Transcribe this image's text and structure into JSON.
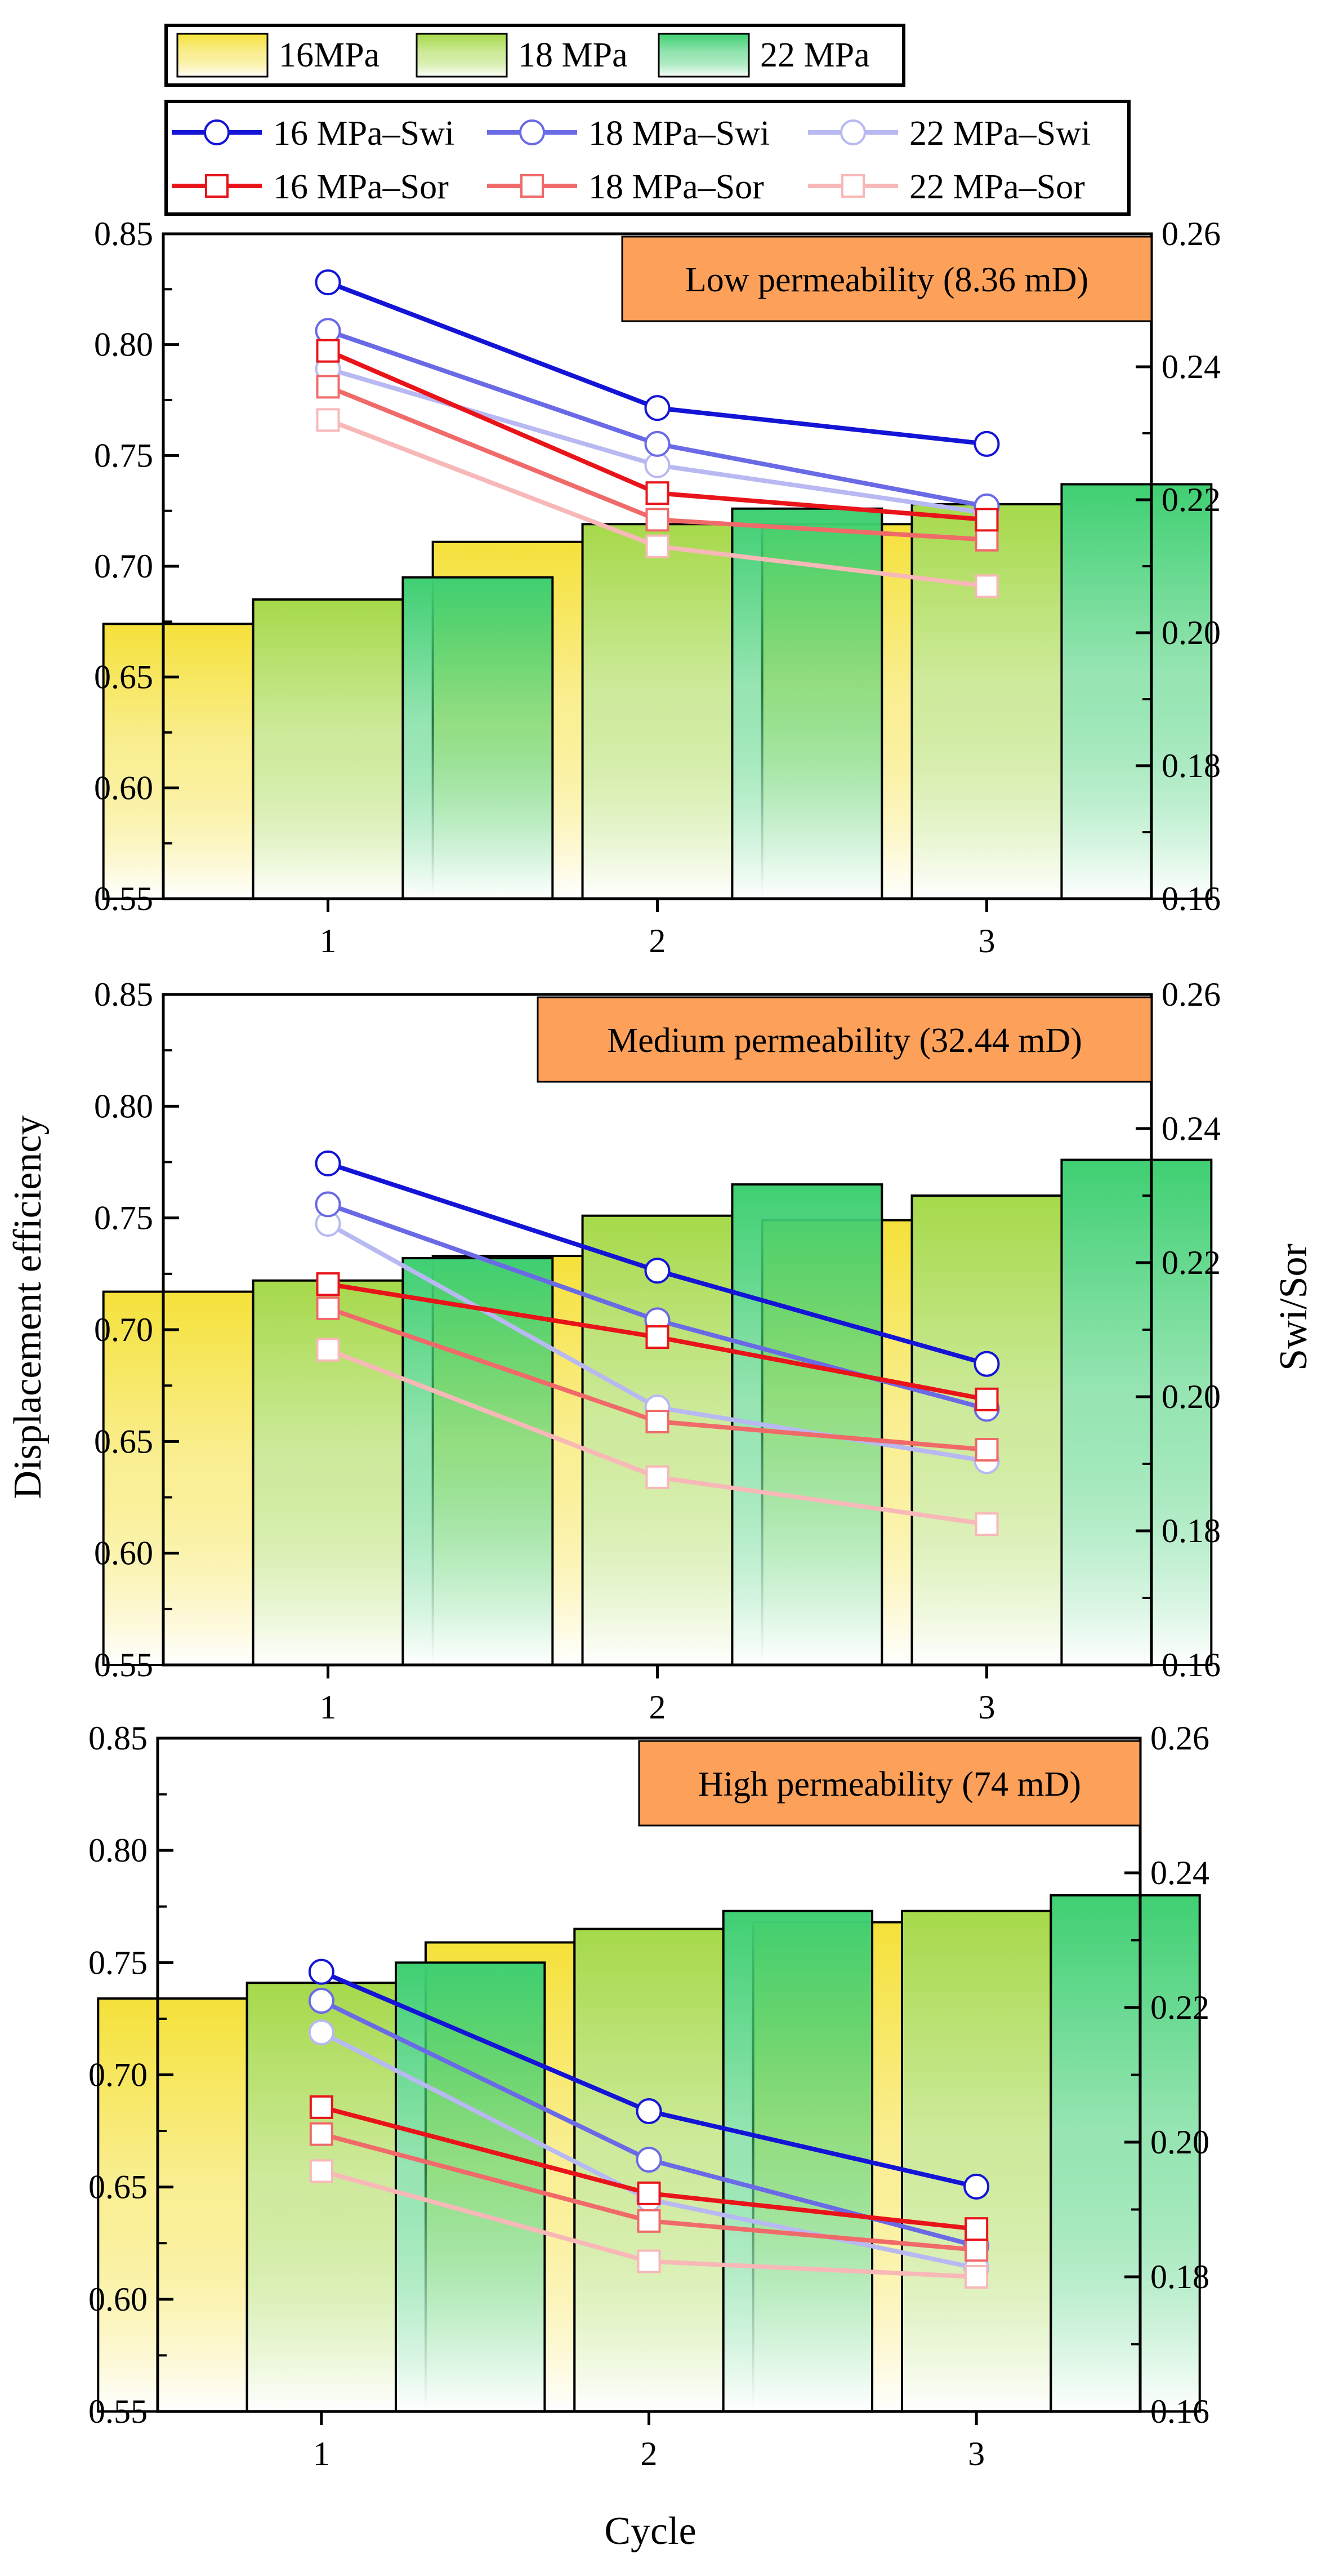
{
  "colors": {
    "bar_16": "#f5e13a",
    "bar_18": "#a6d94a",
    "bar_22": "#3fcf72",
    "swi_16": "#1414d6",
    "swi_18": "#6a6ae6",
    "swi_22": "#b8b8f2",
    "sor_16": "#e8141a",
    "sor_18": "#f06a6a",
    "sor_22": "#f8b8b8",
    "box_fill": "#fda15a"
  },
  "legend": {
    "bars": [
      "16MPa",
      "18 MPa",
      "22 MPa"
    ],
    "lines": [
      "16 MPa–Swi",
      "18 MPa–Swi",
      "22 MPa–Swi",
      "16 MPa–Sor",
      "18 MPa–Sor",
      "22 MPa–Sor"
    ]
  },
  "chart_data": [
    {
      "type": "bar",
      "title": "Low permeability (8.36 mD)",
      "categories": [
        "1",
        "2",
        "3"
      ],
      "ylabel": "Displacement efficiency",
      "y2label": "Swi/Sor",
      "ylim": [
        0.55,
        0.85
      ],
      "y2lim": [
        0.16,
        0.26
      ],
      "yticks": [
        "0.55",
        "0.60",
        "0.65",
        "0.70",
        "0.75",
        "0.80",
        "0.85"
      ],
      "y2ticks": [
        "0.16",
        "0.18",
        "0.20",
        "0.22",
        "0.24",
        "0.26"
      ],
      "series": [
        {
          "name": "16MPa",
          "values": [
            0.674,
            0.711,
            0.719
          ]
        },
        {
          "name": "18 MPa",
          "values": [
            0.685,
            0.719,
            0.728
          ]
        },
        {
          "name": "22 MPa",
          "values": [
            0.695,
            0.726,
            0.737
          ]
        }
      ],
      "lines": [
        {
          "name": "16 MPa–Swi",
          "values": [
            0.2527,
            0.2338,
            0.2284
          ]
        },
        {
          "name": "18 MPa–Swi",
          "values": [
            0.2454,
            0.2284,
            0.219
          ]
        },
        {
          "name": "22 MPa–Swi",
          "values": [
            0.2397,
            0.2252,
            0.218
          ]
        },
        {
          "name": "16 MPa–Sor",
          "values": [
            0.2424,
            0.221,
            0.217
          ]
        },
        {
          "name": "18 MPa–Sor",
          "values": [
            0.237,
            0.217,
            0.214
          ]
        },
        {
          "name": "22 MPa–Sor",
          "values": [
            0.232,
            0.213,
            0.207
          ]
        }
      ]
    },
    {
      "type": "bar",
      "title": "Medium permeability (32.44 mD)",
      "categories": [
        "1",
        "2",
        "3"
      ],
      "ylabel": "Displacement efficiency",
      "y2label": "Swi/Sor",
      "ylim": [
        0.55,
        0.85
      ],
      "y2lim": [
        0.16,
        0.26
      ],
      "yticks": [
        "0.55",
        "0.60",
        "0.65",
        "0.70",
        "0.75",
        "0.80",
        "0.85"
      ],
      "y2ticks": [
        "0.16",
        "0.18",
        "0.20",
        "0.22",
        "0.24",
        "0.26"
      ],
      "series": [
        {
          "name": "16MPa",
          "values": [
            0.717,
            0.733,
            0.749
          ]
        },
        {
          "name": "18 MPa",
          "values": [
            0.722,
            0.751,
            0.76
          ]
        },
        {
          "name": "22 MPa",
          "values": [
            0.732,
            0.765,
            0.776
          ]
        }
      ],
      "lines": [
        {
          "name": "16 MPa–Swi",
          "values": [
            0.2348,
            0.2188,
            0.2049
          ]
        },
        {
          "name": "18 MPa–Swi",
          "values": [
            0.2287,
            0.2114,
            0.1982
          ]
        },
        {
          "name": "22 MPa–Swi",
          "values": [
            0.2258,
            0.1984,
            0.1904
          ]
        },
        {
          "name": "16 MPa–Sor",
          "values": [
            0.2168,
            0.2089,
            0.1996
          ]
        },
        {
          "name": "18 MPa–Sor",
          "values": [
            0.2132,
            0.1963,
            0.1921
          ]
        },
        {
          "name": "22 MPa–Sor",
          "values": [
            0.207,
            0.188,
            0.181
          ]
        }
      ]
    },
    {
      "type": "bar",
      "title": "High permeability (74 mD)",
      "categories": [
        "1",
        "2",
        "3"
      ],
      "xlabel": "Cycle",
      "ylabel": "Displacement efficiency",
      "y2label": "Swi/Sor",
      "ylim": [
        0.55,
        0.85
      ],
      "y2lim": [
        0.16,
        0.26
      ],
      "yticks": [
        "0.55",
        "0.60",
        "0.65",
        "0.70",
        "0.75",
        "0.80",
        "0.85"
      ],
      "y2ticks": [
        "0.16",
        "0.18",
        "0.20",
        "0.22",
        "0.24",
        "0.26"
      ],
      "series": [
        {
          "name": "16MPa",
          "values": [
            0.734,
            0.759,
            0.768
          ]
        },
        {
          "name": "18 MPa",
          "values": [
            0.741,
            0.765,
            0.773
          ]
        },
        {
          "name": "22 MPa",
          "values": [
            0.75,
            0.773,
            0.78
          ]
        }
      ],
      "lines": [
        {
          "name": "16 MPa–Swi",
          "values": [
            0.2253,
            0.2046,
            0.1934
          ]
        },
        {
          "name": "18 MPa–Swi",
          "values": [
            0.221,
            0.1974,
            0.1846
          ]
        },
        {
          "name": "22 MPa–Swi",
          "values": [
            0.2163,
            0.1915,
            0.1813
          ]
        },
        {
          "name": "16 MPa–Sor",
          "values": [
            0.2052,
            0.1924,
            0.1871
          ]
        },
        {
          "name": "18 MPa–Sor",
          "values": [
            0.2012,
            0.1883,
            0.184
          ]
        },
        {
          "name": "22 MPa–Sor",
          "values": [
            0.1957,
            0.1823,
            0.18
          ]
        }
      ]
    }
  ]
}
